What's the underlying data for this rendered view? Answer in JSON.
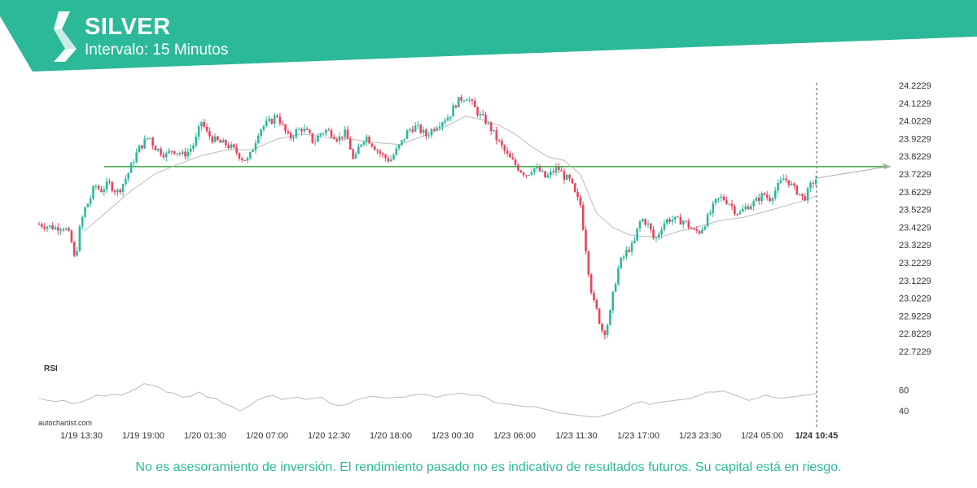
{
  "header": {
    "symbol": "SILVER",
    "interval": "Intervalo: 15 Minutos"
  },
  "colors": {
    "brand": "#2bb99a",
    "up_candle": "#2bb99a",
    "down_candle": "#e8435c",
    "level_line": "#4caf50",
    "moving_average": "#bbbbbb",
    "rsi_line": "#bbbbbb"
  },
  "icons": {
    "logo": "autochartist-logo-icon",
    "arrow": "projection-arrow-icon"
  },
  "watermark": "autochartist.com",
  "rsi_label": "RSI",
  "disclaimer": "No es asesoramiento de inversión. El rendimiento pasado no es indicativo de resultados futuros. Su capital está en riesgo.",
  "chart_data": {
    "type": "candlestick",
    "price_axis": {
      "position": "right",
      "ticks": [
        "24.2229",
        "24.1229",
        "24.0229",
        "23.9229",
        "23.8229",
        "23.7229",
        "23.6229",
        "23.5229",
        "23.4229",
        "23.3229",
        "23.2229",
        "23.1229",
        "23.0229",
        "22.9229",
        "22.8229",
        "22.7229"
      ],
      "range": [
        22.7229,
        24.2229
      ]
    },
    "time_axis": {
      "ticks": [
        "1/19 13:30",
        "1/19 19:00",
        "1/20 01:30",
        "1/20 07:00",
        "1/20 12:30",
        "1/20 18:00",
        "1/23 00:30",
        "1/23 06:00",
        "1/23 11:30",
        "1/23 17:00",
        "1/23 23:30",
        "1/24 05:00",
        "1/24 10:45"
      ],
      "highlight": "1/24 10:45"
    },
    "horizontal_level": 23.765,
    "price_path": [
      [
        0,
        23.44
      ],
      [
        10,
        23.43
      ],
      [
        20,
        23.42
      ],
      [
        28,
        23.43
      ],
      [
        35,
        23.4
      ],
      [
        40,
        23.33
      ],
      [
        44,
        23.22
      ],
      [
        48,
        23.38
      ],
      [
        55,
        23.52
      ],
      [
        62,
        23.58
      ],
      [
        68,
        23.66
      ],
      [
        75,
        23.63
      ],
      [
        85,
        23.67
      ],
      [
        95,
        23.62
      ],
      [
        100,
        23.65
      ],
      [
        108,
        23.72
      ],
      [
        115,
        23.8
      ],
      [
        122,
        23.87
      ],
      [
        128,
        23.9
      ],
      [
        134,
        23.94
      ],
      [
        140,
        23.88
      ],
      [
        148,
        23.85
      ],
      [
        155,
        23.83
      ],
      [
        162,
        23.86
      ],
      [
        168,
        23.85
      ],
      [
        175,
        23.83
      ],
      [
        182,
        23.85
      ],
      [
        190,
        23.9
      ],
      [
        198,
        24.02
      ],
      [
        205,
        23.95
      ],
      [
        212,
        23.92
      ],
      [
        220,
        23.9
      ],
      [
        228,
        23.89
      ],
      [
        235,
        23.87
      ],
      [
        242,
        23.84
      ],
      [
        248,
        23.81
      ],
      [
        255,
        23.8
      ],
      [
        260,
        23.86
      ],
      [
        268,
        23.97
      ],
      [
        275,
        24.0
      ],
      [
        283,
        24.02
      ],
      [
        290,
        24.06
      ],
      [
        298,
        23.98
      ],
      [
        305,
        23.92
      ],
      [
        312,
        23.96
      ],
      [
        320,
        23.98
      ],
      [
        328,
        23.95
      ],
      [
        335,
        23.9
      ],
      [
        342,
        23.95
      ],
      [
        350,
        23.97
      ],
      [
        358,
        23.95
      ],
      [
        365,
        23.92
      ],
      [
        372,
        23.96
      ],
      [
        378,
        23.9
      ],
      [
        384,
        23.78
      ],
      [
        390,
        23.88
      ],
      [
        398,
        23.94
      ],
      [
        405,
        23.9
      ],
      [
        412,
        23.86
      ],
      [
        420,
        23.82
      ],
      [
        428,
        23.8
      ],
      [
        435,
        23.85
      ],
      [
        442,
        23.9
      ],
      [
        450,
        23.97
      ],
      [
        458,
        23.99
      ],
      [
        465,
        23.97
      ],
      [
        472,
        23.94
      ],
      [
        480,
        23.98
      ],
      [
        490,
        24.02
      ],
      [
        500,
        24.05
      ],
      [
        508,
        24.12
      ],
      [
        515,
        24.15
      ],
      [
        522,
        24.16
      ],
      [
        530,
        24.1
      ],
      [
        538,
        24.05
      ],
      [
        545,
        24.02
      ],
      [
        552,
        23.97
      ],
      [
        558,
        23.92
      ],
      [
        565,
        23.87
      ],
      [
        572,
        23.82
      ],
      [
        580,
        23.78
      ],
      [
        588,
        23.74
      ],
      [
        595,
        23.72
      ],
      [
        602,
        23.76
      ],
      [
        610,
        23.74
      ],
      [
        618,
        23.7
      ],
      [
        625,
        23.73
      ],
      [
        632,
        23.76
      ],
      [
        640,
        23.71
      ],
      [
        648,
        23.68
      ],
      [
        654,
        23.6
      ],
      [
        660,
        23.55
      ],
      [
        664,
        23.4
      ],
      [
        668,
        23.25
      ],
      [
        672,
        23.1
      ],
      [
        676,
        23.0
      ],
      [
        680,
        22.95
      ],
      [
        684,
        22.88
      ],
      [
        688,
        22.82
      ],
      [
        692,
        22.86
      ],
      [
        696,
        22.93
      ],
      [
        700,
        23.05
      ],
      [
        704,
        23.15
      ],
      [
        708,
        23.22
      ],
      [
        712,
        23.25
      ],
      [
        718,
        23.3
      ],
      [
        722,
        23.31
      ],
      [
        726,
        23.34
      ],
      [
        730,
        23.42
      ],
      [
        734,
        23.47
      ],
      [
        738,
        23.46
      ],
      [
        742,
        23.44
      ],
      [
        746,
        23.4
      ],
      [
        750,
        23.35
      ],
      [
        754,
        23.37
      ],
      [
        758,
        23.42
      ],
      [
        764,
        23.46
      ],
      [
        770,
        23.47
      ],
      [
        778,
        23.46
      ],
      [
        786,
        23.46
      ],
      [
        792,
        23.43
      ],
      [
        798,
        23.4
      ],
      [
        806,
        23.4
      ],
      [
        812,
        23.45
      ],
      [
        818,
        23.5
      ],
      [
        824,
        23.56
      ],
      [
        830,
        23.59
      ],
      [
        836,
        23.58
      ],
      [
        842,
        23.56
      ],
      [
        848,
        23.52
      ],
      [
        854,
        23.5
      ],
      [
        860,
        23.53
      ],
      [
        866,
        23.55
      ],
      [
        872,
        23.56
      ],
      [
        878,
        23.59
      ],
      [
        884,
        23.61
      ],
      [
        890,
        23.58
      ],
      [
        896,
        23.62
      ],
      [
        902,
        23.66
      ],
      [
        908,
        23.7
      ],
      [
        914,
        23.68
      ],
      [
        920,
        23.64
      ],
      [
        926,
        23.62
      ],
      [
        932,
        23.58
      ],
      [
        936,
        23.61
      ],
      [
        940,
        23.65
      ],
      [
        944,
        23.68
      ],
      [
        948,
        23.7
      ]
    ],
    "moving_average_path": [
      [
        55,
        23.4
      ],
      [
        80,
        23.5
      ],
      [
        110,
        23.62
      ],
      [
        140,
        23.72
      ],
      [
        170,
        23.78
      ],
      [
        200,
        23.83
      ],
      [
        230,
        23.86
      ],
      [
        260,
        23.86
      ],
      [
        290,
        23.92
      ],
      [
        320,
        23.95
      ],
      [
        350,
        23.93
      ],
      [
        380,
        23.92
      ],
      [
        410,
        23.9
      ],
      [
        440,
        23.89
      ],
      [
        470,
        23.94
      ],
      [
        500,
        24.0
      ],
      [
        520,
        24.05
      ],
      [
        540,
        24.03
      ],
      [
        560,
        24.0
      ],
      [
        580,
        23.95
      ],
      [
        600,
        23.88
      ],
      [
        620,
        23.82
      ],
      [
        640,
        23.8
      ],
      [
        660,
        23.72
      ],
      [
        680,
        23.5
      ],
      [
        700,
        23.42
      ],
      [
        720,
        23.38
      ],
      [
        740,
        23.37
      ],
      [
        760,
        23.37
      ],
      [
        780,
        23.4
      ],
      [
        800,
        23.42
      ],
      [
        830,
        23.46
      ],
      [
        860,
        23.48
      ],
      [
        900,
        23.53
      ],
      [
        930,
        23.57
      ],
      [
        948,
        23.6
      ]
    ],
    "rsi": {
      "ticks": [
        60,
        40
      ],
      "range": [
        30,
        72
      ],
      "values_path": [
        [
          0,
          52
        ],
        [
          10,
          50
        ],
        [
          20,
          49
        ],
        [
          30,
          50
        ],
        [
          40,
          47
        ],
        [
          50,
          48
        ],
        [
          60,
          51
        ],
        [
          70,
          55
        ],
        [
          80,
          54
        ],
        [
          90,
          56
        ],
        [
          100,
          55
        ],
        [
          110,
          58
        ],
        [
          120,
          62
        ],
        [
          128,
          66
        ],
        [
          135,
          65
        ],
        [
          145,
          63
        ],
        [
          155,
          58
        ],
        [
          165,
          57
        ],
        [
          175,
          53
        ],
        [
          185,
          54
        ],
        [
          195,
          58
        ],
        [
          205,
          53
        ],
        [
          215,
          52
        ],
        [
          225,
          47
        ],
        [
          235,
          44
        ],
        [
          245,
          40
        ],
        [
          255,
          44
        ],
        [
          265,
          50
        ],
        [
          275,
          53
        ],
        [
          285,
          55
        ],
        [
          295,
          51
        ],
        [
          305,
          52
        ],
        [
          315,
          53
        ],
        [
          325,
          51
        ],
        [
          335,
          52
        ],
        [
          345,
          53
        ],
        [
          355,
          47
        ],
        [
          365,
          45
        ],
        [
          375,
          46
        ],
        [
          385,
          50
        ],
        [
          395,
          52
        ],
        [
          405,
          54
        ],
        [
          415,
          53
        ],
        [
          425,
          52
        ],
        [
          435,
          53
        ],
        [
          445,
          53
        ],
        [
          455,
          55
        ],
        [
          465,
          56
        ],
        [
          475,
          55
        ],
        [
          485,
          53
        ],
        [
          495,
          55
        ],
        [
          505,
          56
        ],
        [
          515,
          57
        ],
        [
          525,
          55
        ],
        [
          535,
          55
        ],
        [
          545,
          53
        ],
        [
          555,
          48
        ],
        [
          565,
          47
        ],
        [
          575,
          46
        ],
        [
          585,
          45
        ],
        [
          595,
          44
        ],
        [
          605,
          44
        ],
        [
          615,
          42
        ],
        [
          625,
          40
        ],
        [
          635,
          38
        ],
        [
          645,
          37
        ],
        [
          655,
          36
        ],
        [
          665,
          35
        ],
        [
          675,
          34
        ],
        [
          685,
          35
        ],
        [
          695,
          37
        ],
        [
          705,
          40
        ],
        [
          715,
          43
        ],
        [
          725,
          47
        ],
        [
          735,
          49
        ],
        [
          745,
          46
        ],
        [
          755,
          48
        ],
        [
          765,
          49
        ],
        [
          775,
          50
        ],
        [
          785,
          51
        ],
        [
          795,
          52
        ],
        [
          805,
          55
        ],
        [
          815,
          58
        ],
        [
          825,
          58
        ],
        [
          835,
          59
        ],
        [
          845,
          56
        ],
        [
          855,
          53
        ],
        [
          865,
          50
        ],
        [
          875,
          52
        ],
        [
          885,
          55
        ],
        [
          895,
          53
        ],
        [
          905,
          52
        ],
        [
          915,
          53
        ],
        [
          925,
          54
        ],
        [
          935,
          55
        ],
        [
          945,
          56
        ],
        [
          948,
          57
        ]
      ]
    }
  }
}
